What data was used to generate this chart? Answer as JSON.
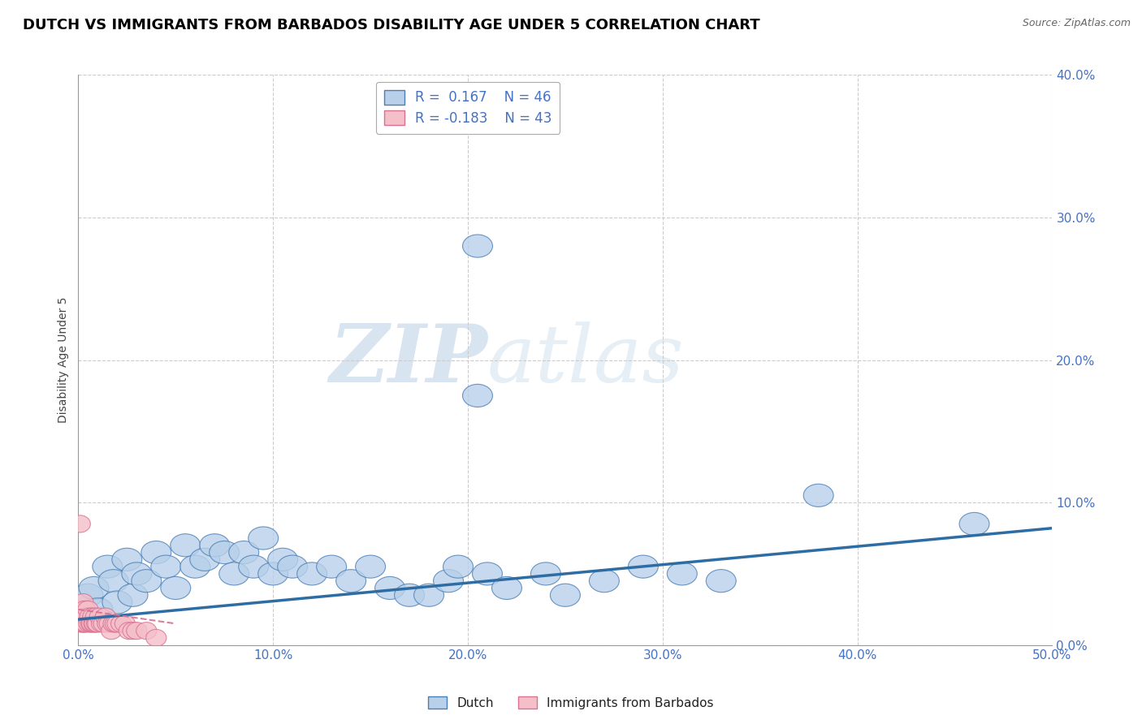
{
  "title": "DUTCH VS IMMIGRANTS FROM BARBADOS DISABILITY AGE UNDER 5 CORRELATION CHART",
  "source": "Source: ZipAtlas.com",
  "ylabel": "Disability Age Under 5",
  "xlim": [
    0.0,
    50.0
  ],
  "ylim": [
    0.0,
    40.0
  ],
  "dutch_R": 0.167,
  "dutch_N": 46,
  "barbados_R": -0.183,
  "barbados_N": 43,
  "dutch_color": "#b8d0ea",
  "dutch_edge_color": "#4a7eb5",
  "dutch_line_color": "#2e6da4",
  "barbados_color": "#f5bfca",
  "barbados_edge_color": "#d87090",
  "barbados_line_color": "#d87090",
  "watermark_color": "#ccdcee",
  "background_color": "#ffffff",
  "tick_color": "#4472c4",
  "grid_color": "#cccccc",
  "title_fontsize": 13,
  "source_fontsize": 9,
  "tick_fontsize": 11,
  "ylabel_fontsize": 10,
  "dutch_x": [
    0.5,
    0.8,
    1.0,
    1.5,
    1.8,
    2.0,
    2.5,
    2.8,
    3.0,
    3.5,
    4.0,
    4.5,
    5.0,
    5.5,
    6.0,
    6.5,
    7.0,
    7.5,
    8.0,
    8.5,
    9.0,
    9.5,
    10.0,
    10.5,
    11.0,
    12.0,
    13.0,
    14.0,
    15.0,
    16.0,
    17.0,
    18.0,
    19.0,
    20.5,
    21.0,
    22.0,
    24.0,
    25.0,
    27.0,
    29.0,
    31.0,
    33.0,
    38.0,
    46.0,
    20.5,
    19.5
  ],
  "dutch_y": [
    3.5,
    4.0,
    2.5,
    5.5,
    4.5,
    3.0,
    6.0,
    3.5,
    5.0,
    4.5,
    6.5,
    5.5,
    4.0,
    7.0,
    5.5,
    6.0,
    7.0,
    6.5,
    5.0,
    6.5,
    5.5,
    7.5,
    5.0,
    6.0,
    5.5,
    5.0,
    5.5,
    4.5,
    5.5,
    4.0,
    3.5,
    3.5,
    4.5,
    28.0,
    5.0,
    4.0,
    5.0,
    3.5,
    4.5,
    5.5,
    5.0,
    4.5,
    10.5,
    8.5,
    17.5,
    5.5
  ],
  "barbados_x": [
    0.08,
    0.12,
    0.15,
    0.18,
    0.2,
    0.22,
    0.25,
    0.28,
    0.3,
    0.33,
    0.35,
    0.38,
    0.4,
    0.45,
    0.5,
    0.55,
    0.6,
    0.65,
    0.7,
    0.75,
    0.8,
    0.85,
    0.9,
    0.95,
    1.0,
    1.1,
    1.2,
    1.3,
    1.4,
    1.5,
    1.6,
    1.7,
    1.8,
    1.9,
    2.0,
    2.2,
    2.4,
    2.6,
    2.8,
    3.0,
    3.5,
    4.0,
    0.1
  ],
  "barbados_y": [
    2.5,
    2.0,
    1.5,
    2.5,
    1.5,
    2.0,
    3.0,
    1.5,
    2.0,
    1.5,
    2.5,
    2.0,
    1.5,
    2.0,
    2.5,
    1.5,
    2.0,
    1.5,
    1.5,
    2.0,
    1.5,
    1.5,
    2.0,
    1.5,
    1.5,
    2.0,
    1.5,
    1.5,
    2.0,
    1.5,
    1.5,
    1.0,
    1.5,
    1.5,
    1.5,
    1.5,
    1.5,
    1.0,
    1.0,
    1.0,
    1.0,
    0.5,
    8.5
  ],
  "dutch_trend_x0": 0.0,
  "dutch_trend_y0": 1.8,
  "dutch_trend_x1": 50.0,
  "dutch_trend_y1": 8.2,
  "barbados_trend_x0": 0.0,
  "barbados_trend_y0": 2.5,
  "barbados_trend_x1": 5.0,
  "barbados_trend_y1": 1.5
}
